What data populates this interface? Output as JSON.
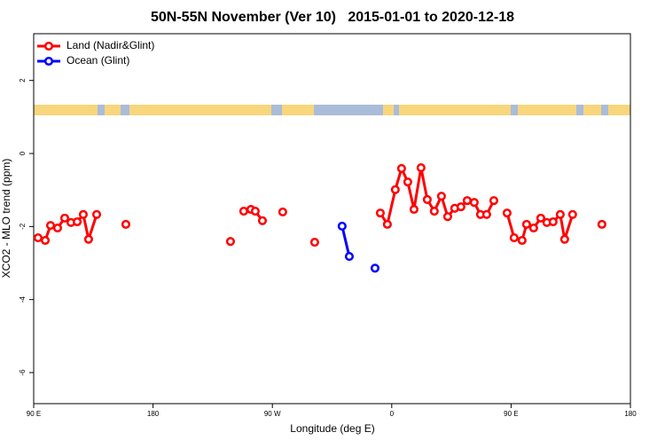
{
  "chart_data": {
    "type": "line",
    "title": "50N-55N November (Ver 10)   2015-01-01 to 2020-12-18",
    "xlabel": "Longitude (deg E)",
    "ylabel": "XCO2 - MLO trend (ppm)",
    "xlim": [
      90,
      540
    ],
    "ylim": [
      -6.85,
      3.28
    ],
    "xticks": [
      {
        "value": 90,
        "label": "90 E"
      },
      180,
      {
        "value": 270,
        "label": "90 W"
      },
      {
        "value": 360,
        "label": "0"
      },
      {
        "value": 450,
        "label": "90 E"
      },
      {
        "value": 540,
        "label": "180"
      }
    ],
    "yticks": [
      -6,
      -4,
      -2,
      0,
      2
    ],
    "legend": "top-left",
    "series": [
      {
        "name": "Land (Nadir&Glint)",
        "color": "#ff0000",
        "x": [
          93.3,
          98.7,
          102.7,
          108.0,
          113.4,
          118.1,
          122.8,
          127.4,
          131.4,
          137.5,
          null,
          159.5,
          null,
          238.4,
          null,
          248.4,
          253.8,
          257.1,
          262.5,
          null,
          277.8,
          null,
          301.9,
          null,
          351.4,
          356.7,
          362.7,
          367.4,
          372.1,
          376.8,
          382.1,
          386.8,
          392.1,
          397.5,
          402.2,
          407.5,
          412.2,
          416.9,
          422.2,
          426.9,
          431.6,
          437.0,
          null,
          447.0,
          452.3,
          458.3,
          461.7,
          467.0,
          472.4,
          477.0,
          481.7,
          487.1,
          490.4,
          496.4,
          null,
          518.5
        ],
        "values": [
          -2.31,
          -2.38,
          -1.97,
          -2.04,
          -1.77,
          -1.89,
          -1.87,
          -1.67,
          -2.35,
          -1.67,
          null,
          -1.94,
          null,
          -2.41,
          null,
          -1.58,
          -1.53,
          -1.58,
          -1.84,
          null,
          -1.6,
          null,
          -2.43,
          null,
          -1.63,
          -1.94,
          -0.99,
          -0.41,
          -0.78,
          -1.53,
          -0.39,
          -1.26,
          -1.58,
          -1.17,
          -1.73,
          -1.5,
          -1.46,
          -1.29,
          -1.34,
          -1.67,
          -1.67,
          -1.29,
          null,
          -1.63,
          -2.31,
          -2.38,
          -1.94,
          -2.04,
          -1.77,
          -1.89,
          -1.87,
          -1.67,
          -2.35,
          -1.67,
          null,
          -1.94
        ]
      },
      {
        "name": "Ocean (Glint)",
        "color": "#0000ff",
        "x": [
          322.6,
          328.0,
          null,
          347.4
        ],
        "values": [
          -1.99,
          -2.82,
          null,
          -3.14
        ]
      }
    ]
  }
}
